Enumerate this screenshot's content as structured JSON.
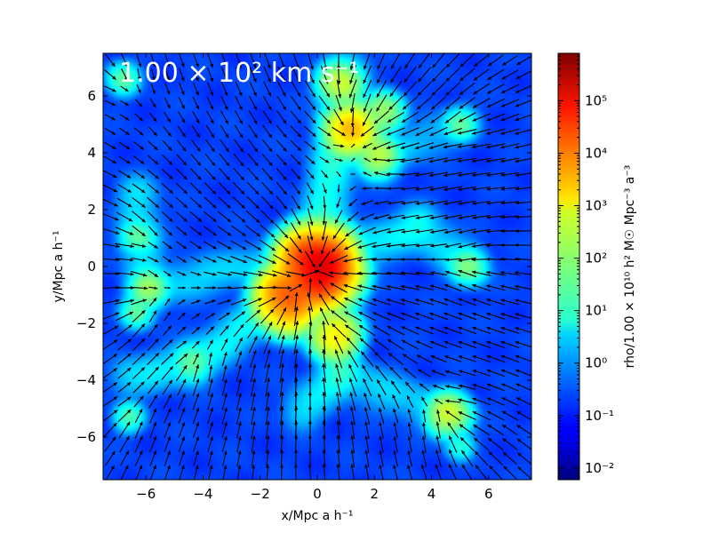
{
  "chart_data": {
    "type": "heatmap",
    "title": "",
    "overlay": "quiver (velocity field arrows)",
    "annotation_text": "1.00 × 10² km s⁻¹",
    "xlabel": "x/Mpc a h⁻¹",
    "ylabel": "y/Mpc a h⁻¹",
    "xlim": [
      -7.5,
      7.5
    ],
    "ylim": [
      -7.5,
      7.5
    ],
    "x_ticks": [
      -6,
      -4,
      -2,
      0,
      2,
      4,
      6
    ],
    "y_ticks": [
      -6,
      -4,
      -2,
      0,
      2,
      4,
      6
    ],
    "x_tick_labels": [
      "−6",
      "−4",
      "−2",
      "0",
      "2",
      "4",
      "6"
    ],
    "y_tick_labels": [
      "−6",
      "−4",
      "−2",
      "0",
      "2",
      "4",
      "6"
    ],
    "colorbar": {
      "label": "rho/1.00 × 10¹⁰ h² M☉ Mpc⁻³ a⁻³",
      "scale": "log",
      "range": [
        0.006,
        800000
      ],
      "colormap": "jet",
      "ticks": [
        0.01,
        0.1,
        1,
        10,
        100,
        1000,
        10000,
        100000
      ],
      "tick_labels": [
        "10⁻²",
        "10⁻¹",
        "10⁰",
        "10¹",
        "10²",
        "10³",
        "10⁴",
        "10⁵"
      ]
    },
    "background_density": 0.2,
    "density_peaks": [
      {
        "x": 0.0,
        "y": 0.0,
        "value": 100000
      },
      {
        "x": 0.15,
        "y": -0.2,
        "value": 30000
      },
      {
        "x": -1.0,
        "y": -1.1,
        "value": 15000
      },
      {
        "x": 0.6,
        "y": -2.4,
        "value": 1000
      },
      {
        "x": 1.2,
        "y": 4.8,
        "value": 2000
      },
      {
        "x": 0.8,
        "y": 6.4,
        "value": 300
      },
      {
        "x": 2.1,
        "y": 3.9,
        "value": 200
      },
      {
        "x": 2.3,
        "y": 5.4,
        "value": 150
      },
      {
        "x": 4.6,
        "y": -5.2,
        "value": 300
      },
      {
        "x": 5.3,
        "y": 0.0,
        "value": 60
      },
      {
        "x": 5.0,
        "y": 5.0,
        "value": 30
      },
      {
        "x": -5.9,
        "y": -0.8,
        "value": 100
      },
      {
        "x": -6.3,
        "y": 1.0,
        "value": 40
      },
      {
        "x": -6.3,
        "y": -1.6,
        "value": 30
      },
      {
        "x": -4.4,
        "y": -3.4,
        "value": 50
      },
      {
        "x": -6.8,
        "y": 6.6,
        "value": 30
      },
      {
        "x": -6.6,
        "y": -5.3,
        "value": 20
      },
      {
        "x": 5.0,
        "y": -6.3,
        "value": 12
      }
    ],
    "filaments": [
      {
        "from": [
          0.0,
          0.0
        ],
        "to": [
          1.0,
          6.8
        ],
        "value": 10
      },
      {
        "from": [
          1.0,
          5.0
        ],
        "to": [
          2.2,
          3.8
        ],
        "value": 8
      },
      {
        "from": [
          0.0,
          0.0
        ],
        "to": [
          3.5,
          1.4
        ],
        "value": 5
      },
      {
        "from": [
          3.5,
          1.4
        ],
        "to": [
          5.3,
          0.0
        ],
        "value": 4
      },
      {
        "from": [
          0.0,
          0.0
        ],
        "to": [
          -1.0,
          -1.1
        ],
        "value": 15
      },
      {
        "from": [
          -1.0,
          -1.1
        ],
        "to": [
          -4.4,
          -3.4
        ],
        "value": 6
      },
      {
        "from": [
          -4.4,
          -3.4
        ],
        "to": [
          -6.5,
          -3.9
        ],
        "value": 4
      },
      {
        "from": [
          0.5,
          -1.0
        ],
        "to": [
          0.8,
          -3.8
        ],
        "value": 10
      },
      {
        "from": [
          0.8,
          -3.8
        ],
        "to": [
          -0.5,
          -5.0
        ],
        "value": 4
      },
      {
        "from": [
          0.8,
          -3.8
        ],
        "to": [
          4.6,
          -5.2
        ],
        "value": 3
      },
      {
        "from": [
          -6.0,
          -0.8
        ],
        "to": [
          -6.3,
          2.5
        ],
        "value": 4
      },
      {
        "from": [
          -6.0,
          -0.8
        ],
        "to": [
          -2.0,
          0.1
        ],
        "value": 3
      },
      {
        "from": [
          2.2,
          3.8
        ],
        "to": [
          5.0,
          5.0
        ],
        "value": 2
      }
    ]
  }
}
